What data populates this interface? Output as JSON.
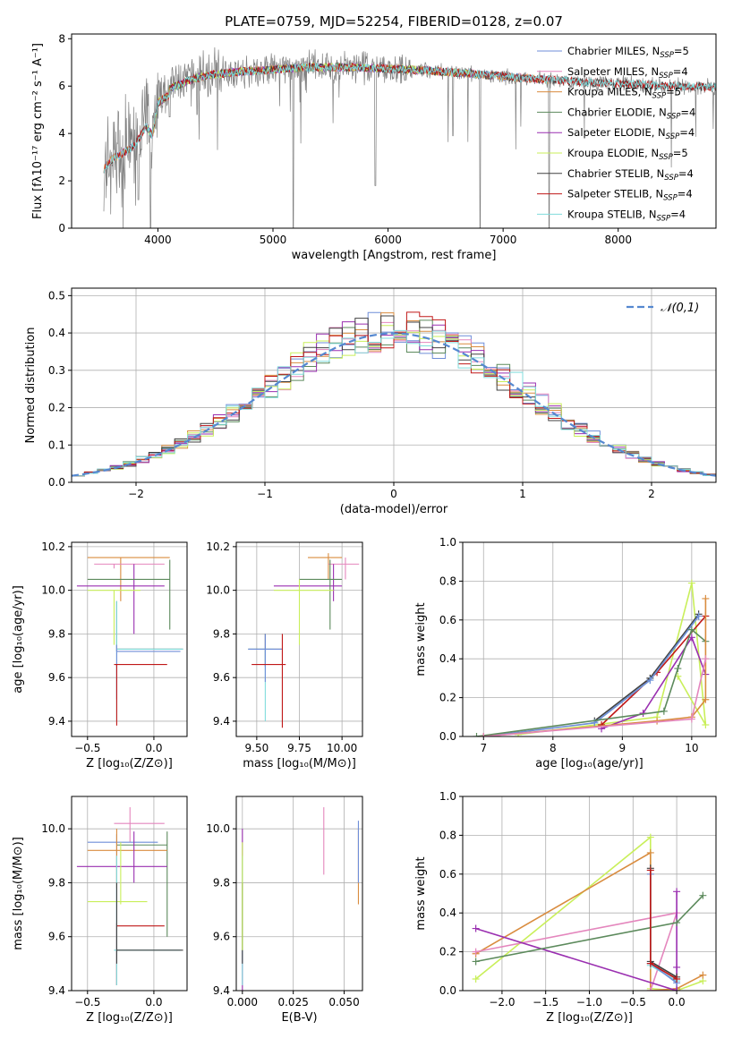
{
  "figure_title": "PLATE=0759, MJD=52254, FIBERID=0128, z=0.07",
  "colors": {
    "chabrier_miles": "#6f8ed8",
    "salpeter_miles": "#e486bd",
    "kroupa_miles": "#d98c3f",
    "chabrier_elodie": "#5c8a5c",
    "salpeter_elodie": "#9a2fb0",
    "kroupa_elodie": "#c9ef5a",
    "chabrier_stelib": "#404040",
    "salpeter_stelib": "#c01818",
    "kroupa_stelib": "#80dcdc",
    "spectrum": "#808080",
    "normal": "#5588d0"
  },
  "legend_models": [
    {
      "key": "chabrier_miles",
      "label": "Chabrier MILES, N",
      "sub": "SSP",
      "val": "=5"
    },
    {
      "key": "salpeter_miles",
      "label": "Salpeter MILES, N",
      "sub": "SSP",
      "val": "=4"
    },
    {
      "key": "kroupa_miles",
      "label": "Kroupa MILES, N",
      "sub": "SSP",
      "val": "=5"
    },
    {
      "key": "chabrier_elodie",
      "label": "Chabrier ELODIE, N",
      "sub": "SSP",
      "val": "=4"
    },
    {
      "key": "salpeter_elodie",
      "label": "Salpeter ELODIE, N",
      "sub": "SSP",
      "val": "=4"
    },
    {
      "key": "kroupa_elodie",
      "label": "Kroupa ELODIE, N",
      "sub": "SSP",
      "val": "=5"
    },
    {
      "key": "chabrier_stelib",
      "label": "Chabrier STELIB, N",
      "sub": "SSP",
      "val": "=4"
    },
    {
      "key": "salpeter_stelib",
      "label": "Salpeter STELIB, N",
      "sub": "SSP",
      "val": "=4"
    },
    {
      "key": "kroupa_stelib",
      "label": "Kroupa STELIB, N",
      "sub": "SSP",
      "val": "=4"
    }
  ],
  "chart_data": [
    {
      "id": "spectrum",
      "type": "line",
      "xlabel": "wavelength [Angstrom, rest frame]",
      "ylabel": "Flux [fλ10⁻¹⁷ erg cm⁻² s⁻¹ A⁻¹]",
      "xlim": [
        3250,
        8850
      ],
      "ylim": [
        0,
        8.2
      ],
      "xticks": [
        4000,
        5000,
        6000,
        7000,
        8000
      ],
      "yticks": [
        0,
        2,
        4,
        6,
        8
      ],
      "continuum": [
        [
          3530,
          2.8
        ],
        [
          3600,
          3.2
        ],
        [
          3700,
          3.5
        ],
        [
          3800,
          3.8
        ],
        [
          3900,
          4.6
        ],
        [
          3950,
          4.2
        ],
        [
          4000,
          5.6
        ],
        [
          4100,
          5.9
        ],
        [
          4300,
          6.3
        ],
        [
          4500,
          6.5
        ],
        [
          4700,
          6.6
        ],
        [
          5000,
          6.7
        ],
        [
          5300,
          6.8
        ],
        [
          5600,
          6.8
        ],
        [
          5900,
          6.75
        ],
        [
          6200,
          6.7
        ],
        [
          6500,
          6.6
        ],
        [
          6800,
          6.5
        ],
        [
          7000,
          6.4
        ],
        [
          7300,
          6.3
        ],
        [
          7600,
          6.2
        ],
        [
          8000,
          6.1
        ],
        [
          8500,
          6.0
        ],
        [
          8850,
          5.95
        ]
      ],
      "absorption_lines": [
        [
          3700,
          3.3
        ],
        [
          3830,
          1.2
        ],
        [
          3935,
          0.0
        ],
        [
          4102,
          4.7
        ],
        [
          4340,
          4.8
        ],
        [
          5175,
          0.0
        ],
        [
          5890,
          1.8
        ],
        [
          6565,
          3.9
        ],
        [
          6800,
          0.0
        ],
        [
          7400,
          0.0
        ],
        [
          8500,
          5.6
        ]
      ],
      "legend_position": "right"
    },
    {
      "id": "residuals",
      "type": "line",
      "xlabel": "(data-model)/error",
      "ylabel": "Normed distribution",
      "xlim": [
        -2.5,
        2.5
      ],
      "ylim": [
        0,
        0.52
      ],
      "xticks": [
        -2,
        -1,
        0,
        1,
        2
      ],
      "yticks": [
        0.0,
        0.1,
        0.2,
        0.3,
        0.4,
        0.5
      ],
      "normal_label": "𝒩(0,1)",
      "bin_edges_start": -2.5,
      "bin_width": 0.1,
      "grid": true,
      "legend_position": "upper right"
    },
    {
      "id": "age_vs_Z",
      "type": "scatter",
      "xlabel": "Z [log₁₀(Z/Z⊙)]",
      "ylabel": "age  [log₁₀(age/yr)]",
      "xlim": [
        -0.62,
        0.25
      ],
      "ylim": [
        9.33,
        10.22
      ],
      "xticks": [
        -0.5,
        0.0
      ],
      "yticks": [
        9.4,
        9.6,
        9.8,
        10.0,
        10.2
      ],
      "points": [
        {
          "c": "kroupa_miles",
          "x": -0.25,
          "y": 10.15,
          "xe": [
            -0.5,
            0.12
          ],
          "ye": [
            9.95,
            10.15
          ]
        },
        {
          "c": "salpeter_miles",
          "x": -0.3,
          "y": 10.12,
          "xe": [
            -0.45,
            0.08
          ],
          "ye": [
            10.1,
            10.12
          ]
        },
        {
          "c": "salpeter_elodie",
          "x": -0.15,
          "y": 10.02,
          "xe": [
            -0.58,
            0.08
          ],
          "ye": [
            9.8,
            10.12
          ]
        },
        {
          "c": "chabrier_elodie",
          "x": 0.12,
          "y": 10.05,
          "xe": [
            -0.5,
            0.12
          ],
          "ye": [
            9.82,
            10.14
          ]
        },
        {
          "c": "kroupa_elodie",
          "x": -0.3,
          "y": 10.0,
          "xe": [
            -0.5,
            -0.1
          ],
          "ye": [
            9.75,
            10.0
          ]
        },
        {
          "c": "chabrier_stelib",
          "x": -0.28,
          "y": 9.73,
          "xe": [
            -0.28,
            0.22
          ],
          "ye": [
            9.72,
            9.95
          ]
        },
        {
          "c": "kroupa_stelib",
          "x": -0.28,
          "y": 9.73,
          "xe": [
            -0.28,
            0.22
          ],
          "ye": [
            9.4,
            9.95
          ]
        },
        {
          "c": "chabrier_miles",
          "x": -0.28,
          "y": 9.72,
          "xe": [
            -0.28,
            0.2
          ],
          "ye": [
            9.5,
            9.75
          ]
        },
        {
          "c": "salpeter_stelib",
          "x": -0.28,
          "y": 9.66,
          "xe": [
            -0.3,
            0.1
          ],
          "ye": [
            9.38,
            9.66
          ]
        }
      ]
    },
    {
      "id": "age_vs_mass",
      "type": "scatter",
      "xlabel": "mass [log₁₀(M/M⊙)]",
      "ylabel": "",
      "xlim": [
        9.38,
        10.12
      ],
      "ylim": [
        9.33,
        10.22
      ],
      "xticks": [
        9.5,
        9.75,
        10.0
      ],
      "yticks": [
        9.4,
        9.6,
        9.8,
        10.0,
        10.2
      ],
      "points": [
        {
          "c": "kroupa_miles",
          "x": 9.92,
          "y": 10.15,
          "xe": [
            9.8,
            10.0
          ],
          "ye": [
            10.05,
            10.17
          ]
        },
        {
          "c": "salpeter_miles",
          "x": 10.02,
          "y": 10.12,
          "xe": [
            9.92,
            10.1
          ],
          "ye": [
            10.05,
            10.15
          ]
        },
        {
          "c": "salpeter_elodie",
          "x": 9.95,
          "y": 10.02,
          "xe": [
            9.6,
            10.0
          ],
          "ye": [
            9.95,
            10.12
          ]
        },
        {
          "c": "chabrier_elodie",
          "x": 9.93,
          "y": 10.05,
          "xe": [
            9.75,
            10.0
          ],
          "ye": [
            9.82,
            10.14
          ]
        },
        {
          "c": "kroupa_elodie",
          "x": 9.75,
          "y": 10.0,
          "xe": [
            9.6,
            9.95
          ],
          "ye": [
            9.75,
            10.05
          ]
        },
        {
          "c": "chabrier_stelib",
          "x": 9.55,
          "y": 9.73,
          "xe": [
            9.45,
            9.65
          ],
          "ye": [
            9.65,
            9.8
          ]
        },
        {
          "c": "kroupa_stelib",
          "x": 9.55,
          "y": 9.73,
          "xe": [
            9.45,
            9.6
          ],
          "ye": [
            9.4,
            9.73
          ]
        },
        {
          "c": "chabrier_miles",
          "x": 9.55,
          "y": 9.73,
          "xe": [
            9.45,
            9.65
          ],
          "ye": [
            9.58,
            9.8
          ]
        },
        {
          "c": "salpeter_stelib",
          "x": 9.65,
          "y": 9.66,
          "xe": [
            9.47,
            9.67
          ],
          "ye": [
            9.37,
            9.8
          ]
        }
      ]
    },
    {
      "id": "weight_vs_age",
      "type": "line",
      "xlabel": "age  [log₁₀(age/yr)]",
      "ylabel": "mass weight",
      "xlim": [
        6.7,
        10.35
      ],
      "ylim": [
        0,
        1.0
      ],
      "xticks": [
        7,
        8,
        9,
        10
      ],
      "yticks": [
        0.0,
        0.2,
        0.4,
        0.6,
        0.8,
        1.0
      ],
      "grid": true,
      "series": [
        {
          "c": "kroupa_elodie",
          "x": [
            7.5,
            9.5,
            10.0,
            10.2,
            9.8
          ],
          "y": [
            0.01,
            0.1,
            0.79,
            0.06,
            0.31
          ]
        },
        {
          "c": "salpeter_stelib",
          "x": 8.7,
          "xs": [
            8.7,
            9.5,
            10.2
          ],
          "y": [
            0.06,
            0.33,
            0.62
          ]
        },
        {
          "c": "chabrier_stelib",
          "x": [
            8.6,
            9.4,
            10.1
          ],
          "y": [
            0.08,
            0.3,
            0.63
          ]
        },
        {
          "c": "kroupa_stelib",
          "x": [
            8.6,
            9.4,
            10.1
          ],
          "y": [
            0.07,
            0.29,
            0.62
          ]
        },
        {
          "c": "chabrier_miles",
          "x": [
            7.0,
            8.6,
            9.4,
            10.1
          ],
          "y": [
            0.0,
            0.07,
            0.29,
            0.62
          ]
        },
        {
          "c": "salpeter_elodie",
          "x": [
            8.7,
            9.3,
            10.0,
            10.2
          ],
          "y": [
            0.04,
            0.12,
            0.51,
            0.32
          ]
        },
        {
          "c": "chabrier_elodie",
          "x": [
            6.9,
            9.6,
            9.8,
            10.0,
            10.2
          ],
          "y": [
            0.0,
            0.13,
            0.35,
            0.55,
            0.49
          ]
        },
        {
          "c": "kroupa_miles",
          "x": [
            7.0,
            9.5,
            10.0,
            10.2,
            10.2
          ],
          "y": [
            0.0,
            0.08,
            0.1,
            0.19,
            0.71
          ]
        },
        {
          "c": "salpeter_miles",
          "x": [
            7.0,
            10.0,
            10.2
          ],
          "y": [
            0.0,
            0.09,
            0.4
          ]
        }
      ]
    },
    {
      "id": "mass_vs_Z",
      "type": "scatter",
      "xlabel": "Z [log₁₀(Z/Z⊙)]",
      "ylabel": "mass [log₁₀(M/M⊙)]",
      "xlim": [
        -0.62,
        0.25
      ],
      "ylim": [
        9.4,
        10.12
      ],
      "xticks": [
        -0.5,
        0.0
      ],
      "yticks": [
        9.4,
        9.6,
        9.8,
        10.0
      ],
      "points": [
        {
          "c": "salpeter_miles",
          "x": -0.18,
          "y": 10.02,
          "xe": [
            -0.3,
            0.08
          ],
          "ye": [
            9.95,
            10.08
          ]
        },
        {
          "c": "chabrier_miles",
          "x": -0.28,
          "y": 9.95,
          "xe": [
            -0.5,
            0.03
          ],
          "ye": [
            9.42,
            9.98
          ]
        },
        {
          "c": "chabrier_elodie",
          "x": 0.1,
          "y": 9.94,
          "xe": [
            -0.28,
            0.1
          ],
          "ye": [
            9.6,
            9.99
          ]
        },
        {
          "c": "kroupa_miles",
          "x": -0.28,
          "y": 9.92,
          "xe": [
            -0.5,
            0.1
          ],
          "ye": [
            9.78,
            10.0
          ]
        },
        {
          "c": "salpeter_elodie",
          "x": -0.15,
          "y": 9.86,
          "xe": [
            -0.58,
            0.1
          ],
          "ye": [
            9.8,
            9.99
          ]
        },
        {
          "c": "kroupa_elodie",
          "x": -0.25,
          "y": 9.73,
          "xe": [
            -0.5,
            -0.05
          ],
          "ye": [
            9.72,
            9.95
          ]
        },
        {
          "c": "salpeter_stelib",
          "x": -0.28,
          "y": 9.64,
          "xe": [
            -0.28,
            0.08
          ],
          "ye": [
            9.42,
            9.65
          ]
        },
        {
          "c": "kroupa_stelib",
          "x": -0.28,
          "y": 9.55,
          "xe": [
            -0.3,
            0.2
          ],
          "ye": [
            9.42,
            9.9
          ]
        },
        {
          "c": "chabrier_stelib",
          "x": -0.28,
          "y": 9.55,
          "xe": [
            -0.28,
            0.22
          ],
          "ye": [
            9.5,
            9.8
          ]
        }
      ]
    },
    {
      "id": "mass_vs_ebv",
      "type": "scatter",
      "xlabel": "E(B-V)",
      "ylabel": "",
      "xlim": [
        -0.003,
        0.059
      ],
      "ylim": [
        9.4,
        10.12
      ],
      "xticks": [
        0.0,
        0.025,
        0.05
      ],
      "yticks": [
        9.4,
        9.6,
        9.8,
        10.0
      ],
      "points": [
        {
          "c": "salpeter_elodie",
          "x": 0.0,
          "y": 9.9,
          "ye": [
            9.4,
            10.0
          ]
        },
        {
          "c": "kroupa_stelib",
          "x": 0.0,
          "y": 9.55,
          "ye": [
            9.42,
            9.9
          ]
        },
        {
          "c": "chabrier_stelib",
          "x": 0.0,
          "y": 9.55,
          "ye": [
            9.5,
            9.8
          ]
        },
        {
          "c": "kroupa_elodie",
          "x": 0.0,
          "y": 9.73,
          "ye": [
            9.55,
            9.95
          ]
        },
        {
          "c": "salpeter_miles",
          "x": 0.04,
          "y": 9.95,
          "ye": [
            9.83,
            10.08
          ]
        },
        {
          "c": "kroupa_miles",
          "x": 0.057,
          "y": 9.9,
          "ye": [
            9.72,
            10.0
          ]
        },
        {
          "c": "chabrier_miles",
          "x": 0.057,
          "y": 9.95,
          "ye": [
            9.8,
            10.03
          ]
        }
      ]
    },
    {
      "id": "weight_vs_Z",
      "type": "line",
      "xlabel": "Z [log₁₀(Z/Z⊙)]",
      "ylabel": "mass weight",
      "xlim": [
        -2.45,
        0.45
      ],
      "ylim": [
        0,
        1.0
      ],
      "xticks": [
        -2.0,
        -1.5,
        -1.0,
        -0.5,
        0.0
      ],
      "yticks": [
        0.0,
        0.2,
        0.4,
        0.6,
        0.8,
        1.0
      ],
      "grid": true,
      "series": [
        {
          "c": "kroupa_elodie",
          "x": [
            -2.3,
            -0.3,
            -0.3,
            0.0,
            0.3
          ],
          "y": [
            0.06,
            0.79,
            0.01,
            0.0,
            0.05
          ]
        },
        {
          "c": "kroupa_miles",
          "x": [
            -2.3,
            -0.3,
            -0.3,
            0.0,
            0.3
          ],
          "y": [
            0.19,
            0.71,
            0.0,
            0.01,
            0.08
          ]
        },
        {
          "c": "salpeter_miles",
          "x": [
            -2.3,
            0.0,
            -0.3,
            0.0
          ],
          "y": [
            0.2,
            0.4,
            0.0,
            0.0
          ]
        },
        {
          "c": "salpeter_elodie",
          "x": [
            -2.3,
            0.0,
            0.0,
            0.0
          ],
          "y": [
            0.32,
            0.0,
            0.51,
            0.12
          ]
        },
        {
          "c": "chabrier_elodie",
          "x": [
            -2.3,
            0.0,
            0.3
          ],
          "y": [
            0.15,
            0.35,
            0.49
          ]
        },
        {
          "c": "chabrier_stelib",
          "x": [
            -0.3,
            -0.3,
            0.0
          ],
          "y": [
            0.63,
            0.15,
            0.07
          ]
        },
        {
          "c": "kroupa_stelib",
          "x": [
            -0.3,
            -0.3,
            0.0
          ],
          "y": [
            0.62,
            0.13,
            0.05
          ]
        },
        {
          "c": "chabrier_miles",
          "x": [
            -0.3,
            -0.3,
            0.0
          ],
          "y": [
            0.6,
            0.14,
            0.04
          ]
        },
        {
          "c": "salpeter_stelib",
          "x": [
            -0.3,
            -0.3,
            0.0
          ],
          "y": [
            0.62,
            0.14,
            0.06
          ]
        }
      ]
    }
  ]
}
